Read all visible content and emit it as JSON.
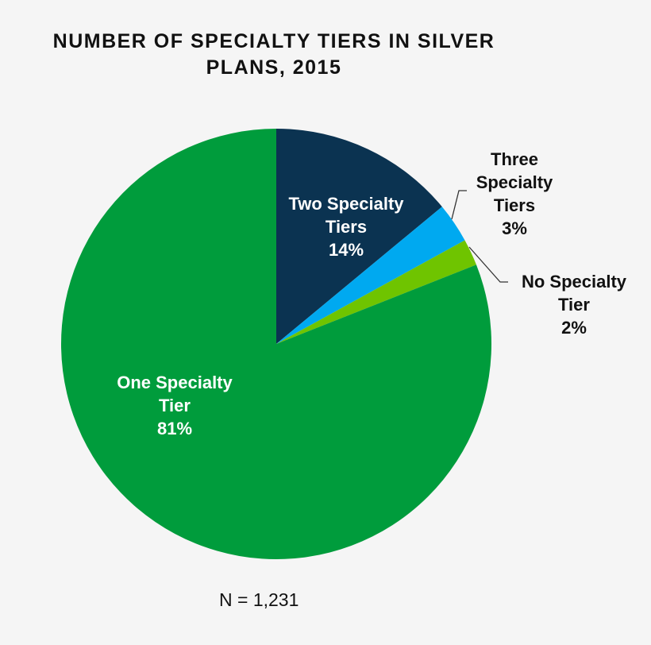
{
  "chart_data": {
    "type": "pie",
    "title": "NUMBER OF SPECIALTY TIERS IN SILVER PLANS, 2015",
    "title_lines": [
      "NUMBER OF SPECIALTY TIERS IN SILVER",
      "PLANS, 2015"
    ],
    "start": "12 o'clock, clockwise",
    "slices": [
      {
        "label_lines": [
          "Two Specialty",
          "Tiers"
        ],
        "label": "Two Specialty Tiers",
        "value": 14,
        "value_label": "14%",
        "color": "#0b3351",
        "label_color": "#ffffff"
      },
      {
        "label_lines": [
          "Three",
          "Specialty",
          "Tiers"
        ],
        "label": "Three Specialty Tiers",
        "value": 3,
        "value_label": "3%",
        "color": "#00a9f0",
        "label_color": "#111111"
      },
      {
        "label_lines": [
          "No Specialty",
          "Tier"
        ],
        "label": "No Specialty Tier",
        "value": 2,
        "value_label": "2%",
        "color": "#6fc400",
        "label_color": "#111111"
      },
      {
        "label_lines": [
          "One Specialty",
          "Tier"
        ],
        "label": "One Specialty Tier",
        "value": 81,
        "value_label": "81%",
        "color": "#009c3c",
        "label_color": "#ffffff"
      }
    ],
    "note": "N = 1,231"
  }
}
